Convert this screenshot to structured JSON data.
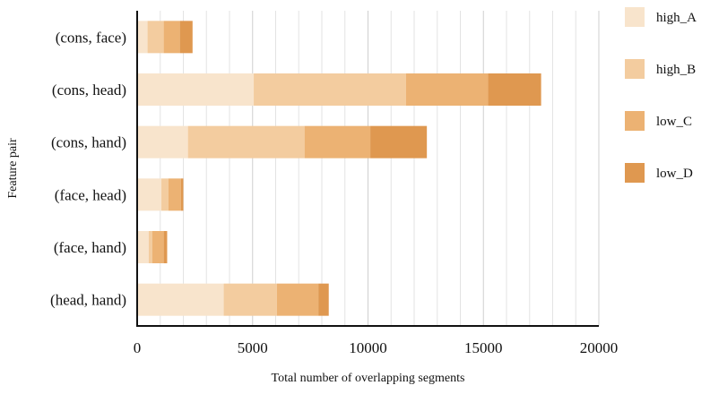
{
  "chart_data": {
    "type": "bar",
    "orientation": "horizontal",
    "stacked": true,
    "title": "",
    "xlabel": "Total number of overlapping segments",
    "ylabel": "Feature pair",
    "xlim": [
      0,
      20000
    ],
    "xticks": [
      "0",
      "5000",
      "10000",
      "15000",
      "20000"
    ],
    "grid": "vertical",
    "legend_position": "right",
    "categories": [
      "(cons, face)",
      "(cons, head)",
      "(cons, hand)",
      "(face, head)",
      "(face, hand)",
      "(head, hand)"
    ],
    "series": [
      {
        "name": "high_A",
        "color": "#f8e4cc",
        "values": [
          450,
          5050,
          2200,
          1050,
          500,
          3750
        ]
      },
      {
        "name": "high_B",
        "color": "#f3cc9f",
        "values": [
          700,
          6600,
          5050,
          300,
          150,
          2300
        ]
      },
      {
        "name": "low_C",
        "color": "#ecb273",
        "values": [
          700,
          3550,
          2850,
          550,
          500,
          1800
        ]
      },
      {
        "name": "low_D",
        "color": "#df9850",
        "values": [
          550,
          2300,
          2450,
          100,
          150,
          450
        ]
      }
    ]
  }
}
